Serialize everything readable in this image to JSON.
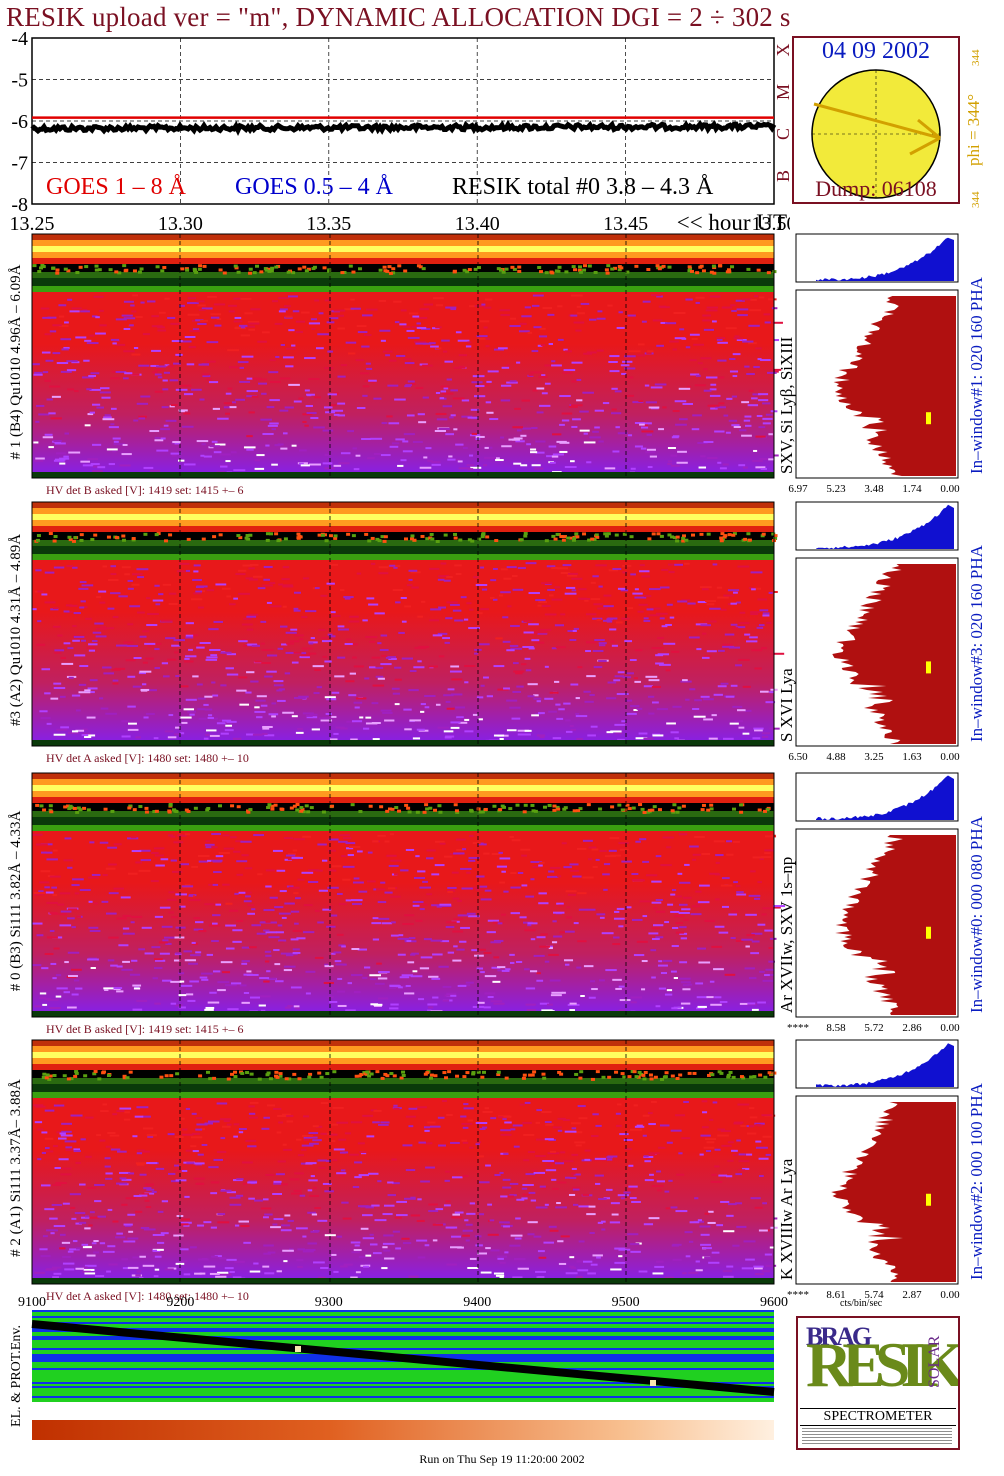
{
  "header": {
    "title": "RESIK upload ver = \"m\", DYNAMIC ALLOCATION  DGI =   2 ÷ 302 s"
  },
  "colors": {
    "title": "#7a1022",
    "goes_long": "#e00000",
    "goes_short": "#0000cc",
    "resik_total": "#000000",
    "spectrum_fill": "#b01010",
    "pha_fill": "#1010d0",
    "sun": "#f2ea3a"
  },
  "chart_data": [
    {
      "type": "line",
      "name": "lightcurve",
      "ylim": [
        -8,
        -4
      ],
      "yticks": [
        "-4",
        "-5",
        "-6",
        "-7",
        "-8"
      ],
      "xlim": [
        13.25,
        13.5
      ],
      "xticks": [
        "13.25",
        "13.30",
        "13.35",
        "13.40",
        "13.45",
        "13.50"
      ],
      "xlabel": "<< hour UT",
      "grid": true,
      "legend": [
        {
          "label": "GOES 1 – 8 Å",
          "color": "#e00000"
        },
        {
          "label": "GOES 0.5 – 4 Å",
          "color": "#0000cc"
        },
        {
          "label": "RESIK total #0  3.8 – 4.3 Å",
          "color": "#000000"
        }
      ],
      "series": [
        {
          "name": "GOES 1 – 8 Å",
          "y": -5.92
        },
        {
          "name": "RESIK total #0  3.8 – 4.3 Å",
          "y": -6.18
        }
      ],
      "class_letters": [
        "X",
        "M",
        "C",
        "B",
        "A"
      ]
    },
    {
      "type": "heatmap",
      "name": "detector-1",
      "ylabel": "# 1 (B4) Qu1010 4.96Å – 6.09Å",
      "line_label": "SXV, Si Lyβ, SiXIII",
      "hv": "HV det B asked [V]:  1419 set:  1415 +–    6",
      "side_label": "In–window#1:  020 160 PHA",
      "spectrum_ticks": [
        "6.97",
        "5.23",
        "3.48",
        "1.74",
        "0.00"
      ],
      "marker_level": 0.35
    },
    {
      "type": "heatmap",
      "name": "detector-3",
      "ylabel": "#3 (A2) Qu1010  4.31Å – 4.89Å",
      "line_label": "S XVI Lya",
      "hv": "HV det A asked [V]:  1480 set:  1480 +–    10",
      "side_label": "In–window#3:  020 160 PHA",
      "spectrum_ticks": [
        "6.50",
        "4.88",
        "3.25",
        "1.63",
        "0.00"
      ],
      "marker_level": 0.45
    },
    {
      "type": "heatmap",
      "name": "detector-0",
      "ylabel": "# 0 (B3) Si111  3.82Å – 4.33Å",
      "line_label": "Ar XVIIw,  SXV 1s–np",
      "hv": "HV det B asked [V]:  1419 set:  1415 +–    6",
      "side_label": "In–window#0:  000 080 PHA",
      "spectrum_ticks": [
        "****",
        "8.58",
        "5.72",
        "2.86",
        "0.00"
      ],
      "marker_level": 0.48
    },
    {
      "type": "heatmap",
      "name": "detector-2",
      "ylabel": "# 2 (A1) Si111  3.37Å– 3.88Å",
      "line_label": "K XVIIIw   Ar Lya",
      "hv": "HV det A asked [V]:  1480 set:  1480 +–    10",
      "side_label": "In–window#2:  000 100 PHA",
      "spectrum_ticks": [
        "****",
        "8.61",
        "5.74",
        "2.87",
        "0.00"
      ],
      "spectrum_xlabel": "cts/bin/sec",
      "marker_level": 0.48
    },
    {
      "type": "area",
      "name": "environment",
      "ylabel": "EL. & PROT.Env.",
      "xlim": [
        9100,
        9600
      ],
      "xticks": [
        "9100",
        "9200",
        "9300",
        "9400",
        "9500",
        "9600"
      ]
    }
  ],
  "orbit": {
    "date": "04 09 2002",
    "phi": "phi = 344°",
    "phi_sub": "344",
    "phi_corner": "344",
    "dump": "Dump: 06108"
  },
  "logo": {
    "small": "BRAG",
    "big": "RESIK",
    "side": "SOLAR",
    "caption": "SPECTROMETER"
  },
  "footer": {
    "run": "Run on Thu Sep 19 11:20:00 2002"
  }
}
